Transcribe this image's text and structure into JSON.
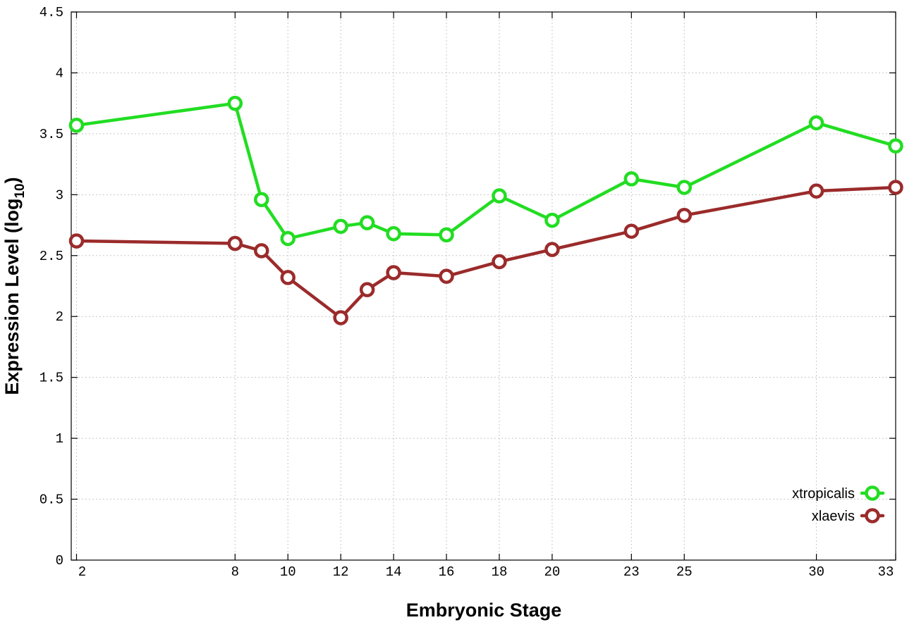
{
  "chart_data": {
    "type": "line",
    "xlabel": "Embryonic Stage",
    "ylabel": "Expression Level (log",
    "ylabel_subscript": "10",
    "ylabel_suffix": ")",
    "ylim": [
      0,
      4.5
    ],
    "y_ticks": [
      "0",
      "0.5",
      "1",
      "1.5",
      "2",
      "2.5",
      "3",
      "3.5",
      "4",
      "4.5"
    ],
    "y_tick_values": [
      0,
      0.5,
      1,
      1.5,
      2,
      2.5,
      3,
      3.5,
      4,
      4.5
    ],
    "x_ticks": [
      "2",
      "8",
      "10",
      "12",
      "14",
      "16",
      "18",
      "20",
      "23",
      "25",
      "30",
      "33"
    ],
    "x_tick_values": [
      2,
      8,
      10,
      12,
      14,
      16,
      18,
      20,
      23,
      25,
      30,
      33
    ],
    "x_values": [
      2,
      8,
      9,
      10,
      12,
      13,
      14,
      16,
      18,
      20,
      23,
      25,
      30,
      33
    ],
    "grid": true,
    "legend_position": "bottom-right",
    "series": [
      {
        "name": "xtropicalis",
        "color": "#22dd22",
        "values": [
          3.57,
          3.75,
          2.96,
          2.64,
          2.74,
          2.77,
          2.68,
          2.67,
          2.99,
          2.79,
          3.13,
          3.06,
          3.59,
          3.4
        ]
      },
      {
        "name": "xlaevis",
        "color": "#9b2b2b",
        "values": [
          2.62,
          2.6,
          2.54,
          2.32,
          1.99,
          2.22,
          2.36,
          2.33,
          2.45,
          2.55,
          2.7,
          2.83,
          3.03,
          3.06
        ]
      }
    ]
  }
}
